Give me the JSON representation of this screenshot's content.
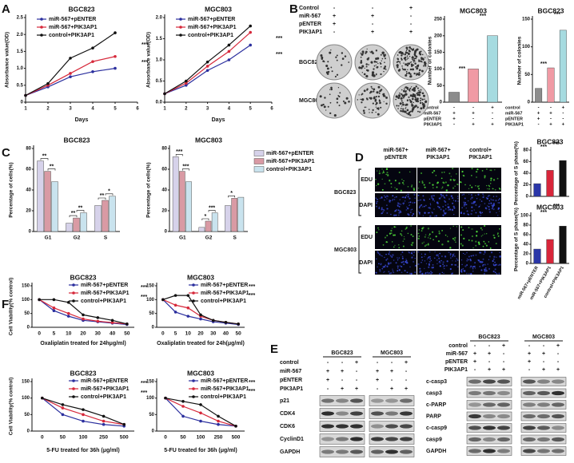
{
  "panel_labels": [
    "A",
    "B",
    "C",
    "D",
    "E",
    "F"
  ],
  "chart_data": [
    {
      "type": "line",
      "title": "BGC823",
      "x_label": "Days",
      "y_label": "Absorbance value(OD)",
      "x": [
        1,
        2,
        3,
        4,
        5
      ],
      "xlim": [
        1,
        6
      ],
      "xticks": [
        1,
        2,
        3,
        4,
        5,
        6
      ],
      "ylim": [
        0,
        2.5
      ],
      "yticks": [
        0,
        0.5,
        {
          "value": 1,
          "label": "1.0"
        },
        1.5,
        {
          "value": 2,
          "label": "2.0"
        },
        2.5
      ],
      "series": [
        {
          "name": "miR-567+pENTER",
          "color": "#2b2f9e",
          "values": [
            0.2,
            0.45,
            0.75,
            0.9,
            1.0
          ]
        },
        {
          "name": "miR-567+PIK3AP1",
          "color": "#d6283a",
          "values": [
            0.2,
            0.5,
            0.85,
            1.2,
            1.35
          ]
        },
        {
          "name": "control+PIK3AP1",
          "color": "#111111",
          "values": [
            0.2,
            0.55,
            1.3,
            1.6,
            2.05
          ]
        }
      ],
      "annotations": [
        "***",
        "***"
      ]
    },
    {
      "type": "line",
      "title": "MGC803",
      "x_label": "Days",
      "y_label": "Absorbance value(OD)",
      "x": [
        1,
        2,
        3,
        4,
        5
      ],
      "xlim": [
        1,
        6
      ],
      "xticks": [
        1,
        2,
        3,
        4,
        5,
        6
      ],
      "ylim": [
        0,
        2
      ],
      "yticks": [
        {
          "value": 0,
          "label": "0.0"
        },
        0.5,
        {
          "value": 1,
          "label": "1.0"
        },
        1.5,
        {
          "value": 2,
          "label": "2.0"
        }
      ],
      "series": [
        {
          "name": "miR-567+pENTER",
          "color": "#2b2f9e",
          "values": [
            0.2,
            0.4,
            0.75,
            1.0,
            1.35
          ]
        },
        {
          "name": "miR-567+PIK3AP1",
          "color": "#d6283a",
          "values": [
            0.2,
            0.45,
            0.85,
            1.2,
            1.65
          ]
        },
        {
          "name": "control+PIK3AP1",
          "color": "#111111",
          "values": [
            0.2,
            0.5,
            0.95,
            1.35,
            1.8
          ]
        }
      ],
      "annotations": [
        "***",
        "***"
      ]
    },
    {
      "type": "bar",
      "title": "MGC803",
      "y_label": "Number of colonies",
      "values": [
        30,
        100,
        200
      ],
      "colors": [
        "#8c8c8c",
        "#f09aa4",
        "#a6dbe0"
      ],
      "ylim": [
        0,
        250
      ],
      "yticks": [
        0,
        50,
        100,
        150,
        200,
        250
      ],
      "annotations": [
        "***",
        "***"
      ],
      "condition_rows": [
        {
          "label": "control",
          "signs": [
            "-",
            "-",
            "+"
          ]
        },
        {
          "label": "miR-567",
          "signs": [
            "+",
            "+",
            "-"
          ]
        },
        {
          "label": "pENTER",
          "signs": [
            "+",
            "-",
            "-"
          ]
        },
        {
          "label": "PIK3AP1",
          "signs": [
            "-",
            "+",
            "+"
          ]
        }
      ]
    },
    {
      "type": "bar",
      "title": "BGC823",
      "y_label": "Number of colonies",
      "values": [
        25,
        62,
        130
      ],
      "colors": [
        "#8c8c8c",
        "#f09aa4",
        "#a6dbe0"
      ],
      "ylim": [
        0,
        150
      ],
      "yticks": [
        0,
        50,
        100,
        150
      ],
      "annotations": [
        "***",
        "***"
      ],
      "condition_rows": [
        {
          "label": "control",
          "signs": [
            "-",
            "-",
            "+"
          ]
        },
        {
          "label": "miR-567",
          "signs": [
            "+",
            "+",
            "-"
          ]
        },
        {
          "label": "pENTER",
          "signs": [
            "+",
            "-",
            "-"
          ]
        },
        {
          "label": "PIK3AP1",
          "signs": [
            "-",
            "+",
            "+"
          ]
        }
      ]
    },
    {
      "type": "grouped_bar",
      "title": "BGC823",
      "y_label": "Percentage of cells(%)",
      "categories": [
        "G1",
        "G2",
        "S"
      ],
      "ylim": [
        0,
        80
      ],
      "yticks": [
        0,
        20,
        40,
        60,
        80
      ],
      "series": [
        {
          "name": "miR-567+pENTER",
          "color": "#d6d2ea",
          "values": [
            68,
            8,
            25
          ]
        },
        {
          "name": "miR-567+PIK3AP1",
          "color": "#d99aa4",
          "values": [
            58,
            13,
            30
          ]
        },
        {
          "name": "control+PIK3AP1",
          "color": "#c9e3ee",
          "values": [
            48,
            18,
            34
          ]
        }
      ],
      "annotations": [
        "**",
        "**",
        "**",
        "**",
        "**",
        "*"
      ]
    },
    {
      "type": "grouped_bar",
      "title": "MGC803",
      "y_label": "Percentage of cells(%)",
      "categories": [
        "G1",
        "G2",
        "S"
      ],
      "ylim": [
        0,
        80
      ],
      "yticks": [
        0,
        20,
        40,
        60,
        80
      ],
      "series": [
        {
          "name": "miR-567+pENTER",
          "color": "#d6d2ea",
          "values": [
            72,
            4,
            25
          ]
        },
        {
          "name": "miR-567+PIK3AP1",
          "color": "#d99aa4",
          "values": [
            58,
            10,
            32
          ]
        },
        {
          "name": "control+PIK3AP1",
          "color": "#c9e3ee",
          "values": [
            48,
            18,
            33
          ]
        }
      ],
      "annotations": [
        "***",
        "***",
        "*",
        "***",
        "*"
      ]
    },
    {
      "type": "bar",
      "title": "BGC823",
      "y_label": "Percentage of S phase(%)",
      "values": [
        22,
        45,
        62
      ],
      "colors": [
        "#2a36a8",
        "#d8263a",
        "#111111"
      ],
      "ylim": [
        0,
        80
      ],
      "yticks": [
        0,
        20,
        40,
        60,
        80
      ],
      "annotations": [
        "***",
        "***"
      ]
    },
    {
      "type": "bar",
      "title": "MGC803",
      "y_label": "Percentage of S phase(%)",
      "categories": [
        "miR-567+pENTER",
        "miR-567+PIK3AP1",
        "control+PIK3AP1"
      ],
      "values": [
        30,
        50,
        78
      ],
      "colors": [
        "#2a36a8",
        "#d8263a",
        "#111111"
      ],
      "ylim": [
        0,
        100
      ],
      "yticks": [
        0,
        20,
        40,
        60,
        80,
        100
      ],
      "annotations": [
        "***",
        "***"
      ]
    },
    {
      "type": "line",
      "title": "BGC823",
      "x_label": "Oxaliplatin treated for 24hμg/ml)",
      "y_label": "Cell Viability(% control)",
      "categories": [
        0,
        5,
        10,
        20,
        30,
        40,
        50
      ],
      "ylim": [
        0,
        150
      ],
      "yticks": [
        0,
        50,
        100,
        150
      ],
      "series": [
        {
          "name": "miR-567+pENTER",
          "color": "#2b2f9e",
          "values": [
            100,
            60,
            40,
            25,
            20,
            15,
            10
          ]
        },
        {
          "name": "miR-567+PIK3AP1",
          "color": "#d6283a",
          "values": [
            100,
            70,
            50,
            30,
            22,
            17,
            12
          ]
        },
        {
          "name": "control+PIK3AP1",
          "color": "#111111",
          "values": [
            100,
            100,
            90,
            45,
            35,
            25,
            12
          ]
        }
      ],
      "annotations": [
        "***",
        "***"
      ]
    },
    {
      "type": "line",
      "title": "MGC803",
      "x_label": "Oxaliplatin treated for 24h(μg/ml)",
      "categories": [
        0,
        5,
        10,
        20,
        30,
        40,
        50
      ],
      "ylim": [
        0,
        150
      ],
      "yticks": [
        0,
        50,
        100,
        150
      ],
      "series": [
        {
          "name": "miR-567+pENTER",
          "color": "#2b2f9e",
          "values": [
            100,
            55,
            40,
            30,
            20,
            15,
            10
          ]
        },
        {
          "name": "miR-567+PIK3AP1",
          "color": "#d6283a",
          "values": [
            100,
            80,
            70,
            40,
            25,
            18,
            12
          ]
        },
        {
          "name": "control+PIK3AP1",
          "color": "#111111",
          "values": [
            100,
            115,
            115,
            45,
            25,
            18,
            12
          ]
        }
      ],
      "annotations": [
        "***",
        "***"
      ]
    },
    {
      "type": "line",
      "title": "BGC823",
      "x_label": "5-FU treated for 36h (μg/ml)",
      "y_label": "Cell Viability(% control)",
      "categories": [
        0,
        50,
        100,
        250,
        500
      ],
      "ylim": [
        0,
        150
      ],
      "yticks": [
        0,
        50,
        100,
        150
      ],
      "series": [
        {
          "name": "miR-567+pENTER",
          "color": "#2b2f9e",
          "values": [
            100,
            50,
            30,
            20,
            15
          ]
        },
        {
          "name": "miR-567+PIK3AP1",
          "color": "#d6283a",
          "values": [
            100,
            70,
            50,
            30,
            20
          ]
        },
        {
          "name": "control+PIK3AP1",
          "color": "#111111",
          "values": [
            100,
            80,
            65,
            45,
            20
          ]
        }
      ],
      "annotations": [
        "***",
        "***"
      ]
    },
    {
      "type": "line",
      "title": "MGC803",
      "x_label": "5-FU treated for 36h (μg/ml)",
      "categories": [
        0,
        50,
        100,
        250,
        500
      ],
      "ylim": [
        0,
        150
      ],
      "yticks": [
        0,
        50,
        100,
        150
      ],
      "series": [
        {
          "name": "miR-567+pENTER",
          "color": "#2b2f9e",
          "values": [
            100,
            45,
            30,
            20,
            15
          ]
        },
        {
          "name": "miR-567+PIK3AP1",
          "color": "#d6283a",
          "values": [
            100,
            75,
            55,
            30,
            15
          ]
        },
        {
          "name": "control+PIK3AP1",
          "color": "#111111",
          "values": [
            100,
            90,
            80,
            45,
            15
          ]
        }
      ],
      "annotations": [
        "***",
        "***"
      ]
    }
  ],
  "colony": {
    "rows": [
      {
        "label": "Control",
        "signs": [
          "-",
          "-",
          "+"
        ]
      },
      {
        "label": "miR-567",
        "signs": [
          "+",
          "+",
          "-"
        ]
      },
      {
        "label": "pENTER",
        "signs": [
          "+",
          "-",
          "-"
        ]
      },
      {
        "label": "PIK3AP1",
        "signs": [
          "-",
          "+",
          "+"
        ]
      }
    ],
    "cells": [
      "BGC823",
      "MGC803"
    ]
  },
  "edu": {
    "columns": [
      [
        "miR-567+",
        "pENTER"
      ],
      [
        "miR-567+",
        "PIK3AP1"
      ],
      [
        "control+",
        "PIK3AP1"
      ]
    ],
    "cells": [
      {
        "name": "BGC823",
        "stains": [
          "EDU",
          "DAPI"
        ]
      },
      {
        "name": "MGC803",
        "stains": [
          "EDU",
          "DAPI"
        ]
      }
    ]
  },
  "blots": [
    {
      "groups": [
        "BGC823",
        "MGC803"
      ],
      "rows": [
        {
          "label": "control",
          "signs": [
            "-",
            "-",
            "+",
            "-",
            "-",
            "+"
          ]
        },
        {
          "label": "miR-567",
          "signs": [
            "+",
            "+",
            "-",
            "+",
            "+",
            "-"
          ]
        },
        {
          "label": "pENTER",
          "signs": [
            "+",
            "-",
            "-",
            "+",
            "-",
            "-"
          ]
        },
        {
          "label": "PIK3AP1",
          "signs": [
            "-",
            "+",
            "+",
            "-",
            "+",
            "+"
          ]
        }
      ],
      "bands": [
        "p21",
        "CDK4",
        "CDK6",
        "CyclinD1",
        "GAPDH"
      ]
    },
    {
      "groups": [
        "BGC823",
        "MGC803"
      ],
      "rows": [
        {
          "label": "control",
          "signs": [
            "-",
            "-",
            "+",
            "-",
            "-",
            "+"
          ]
        },
        {
          "label": "miR-567",
          "signs": [
            "+",
            "+",
            "-",
            "+",
            "+",
            "-"
          ]
        },
        {
          "label": "pENTER",
          "signs": [
            "+",
            "-",
            "-",
            "+",
            "-",
            "-"
          ]
        },
        {
          "label": "PIK3AP1",
          "signs": [
            "-",
            "+",
            "+",
            "-",
            "+",
            "+"
          ]
        }
      ],
      "bands": [
        "c-casp3",
        "casp3",
        "c-PARP",
        "PARP",
        "c-casp9",
        "casp9",
        "GAPDH"
      ]
    }
  ]
}
